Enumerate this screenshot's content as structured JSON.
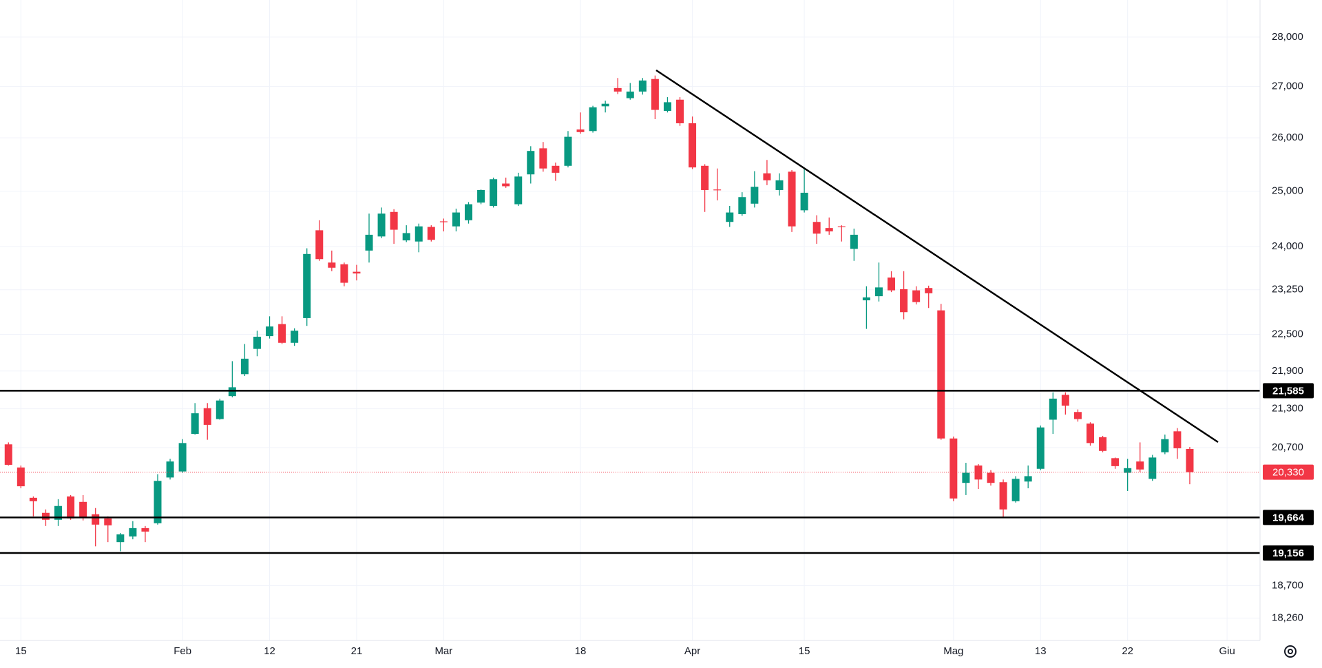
{
  "chart_data": {
    "type": "candlestick",
    "log_scale": true,
    "grid": true,
    "up_color": "#089981",
    "down_color": "#f23645",
    "x": [
      0,
      1,
      2,
      3,
      4,
      5,
      6,
      7,
      8,
      9,
      10,
      11,
      12,
      13,
      14,
      15,
      16,
      17,
      18,
      19,
      20,
      21,
      22,
      23,
      24,
      25,
      26,
      27,
      28,
      29,
      30,
      31,
      32,
      33,
      34,
      35,
      36,
      37,
      38,
      39,
      40,
      41,
      42,
      43,
      44,
      45,
      46,
      47,
      48,
      49,
      50,
      51,
      52,
      53,
      54,
      55,
      56,
      57,
      58,
      59,
      60,
      61,
      62,
      63,
      64,
      65,
      66,
      67,
      68,
      69,
      70,
      71,
      72,
      73,
      74,
      75,
      76,
      77,
      78,
      79,
      80,
      81,
      82,
      83,
      84,
      85,
      86,
      87,
      88,
      89,
      90,
      91,
      92,
      93,
      94,
      95
    ],
    "open": [
      20750,
      20400,
      19950,
      19730,
      19630,
      19970,
      19890,
      19710,
      19650,
      19310,
      19390,
      19510,
      19580,
      20250,
      20340,
      20910,
      21310,
      21140,
      21500,
      21850,
      22260,
      22470,
      22670,
      22360,
      22770,
      24290,
      23720,
      23690,
      23560,
      23930,
      24180,
      24620,
      24110,
      24090,
      24350,
      24450,
      24360,
      24470,
      24790,
      24730,
      25140,
      24760,
      25310,
      25800,
      25470,
      25470,
      26160,
      26130,
      26610,
      26970,
      26770,
      26900,
      27150,
      26520,
      26740,
      26280,
      25470,
      25030,
      24440,
      24580,
      24770,
      25330,
      25020,
      25360,
      24650,
      24440,
      24330,
      24360,
      23960,
      23070,
      23140,
      23460,
      23260,
      23240,
      23280,
      22900,
      20840,
      20170,
      20430,
      20320,
      20180,
      19900,
      20190,
      20380,
      21130,
      21520,
      21250,
      21070,
      20860,
      20540,
      20320,
      20490,
      20230,
      20630,
      20950,
      20680
    ],
    "high": [
      20780,
      20430,
      19970,
      19780,
      19930,
      19990,
      19990,
      19800,
      19680,
      19440,
      19610,
      19540,
      20300,
      20530,
      20830,
      21390,
      21390,
      21460,
      22060,
      22340,
      22560,
      22800,
      22800,
      22600,
      23970,
      24470,
      23930,
      23720,
      23680,
      24590,
      24700,
      24670,
      24380,
      24410,
      24380,
      24500,
      24680,
      24800,
      25030,
      25250,
      25250,
      25340,
      25840,
      25920,
      25530,
      26130,
      26490,
      26620,
      26720,
      27170,
      27070,
      27170,
      27220,
      26790,
      26790,
      26410,
      25500,
      25420,
      24730,
      24980,
      25370,
      25580,
      25330,
      25390,
      25410,
      24560,
      24520,
      24380,
      24320,
      23310,
      23720,
      23570,
      23570,
      23310,
      23320,
      23010,
      20870,
      20470,
      20450,
      20360,
      20220,
      20270,
      20430,
      21040,
      21560,
      21560,
      21290,
      21090,
      20880,
      20550,
      20530,
      20780,
      20590,
      20900,
      21000,
      20710
    ],
    "low": [
      20430,
      20090,
      19680,
      19540,
      19540,
      19630,
      19620,
      19250,
      19310,
      19180,
      19350,
      19310,
      19560,
      20220,
      20320,
      20900,
      20820,
      21130,
      21480,
      21820,
      22140,
      22430,
      22340,
      22310,
      22640,
      23750,
      23570,
      23310,
      23410,
      23720,
      24150,
      24050,
      24080,
      23900,
      24090,
      24270,
      24270,
      24410,
      24760,
      24700,
      25060,
      24730,
      25140,
      25360,
      25190,
      25440,
      26080,
      26100,
      26490,
      26850,
      26740,
      26840,
      26360,
      26490,
      26230,
      25410,
      24620,
      24830,
      24350,
      24550,
      24700,
      25110,
      24920,
      24260,
      24610,
      24050,
      24210,
      24090,
      23750,
      22590,
      23050,
      23210,
      22750,
      23000,
      22940,
      20820,
      19900,
      19990,
      20080,
      20130,
      19660,
      19880,
      20090,
      20360,
      20910,
      21210,
      21100,
      20730,
      20630,
      20380,
      20050,
      20330,
      20200,
      20600,
      20530,
      20150
    ],
    "close": [
      20440,
      20120,
      19900,
      19630,
      19830,
      19650,
      19660,
      19560,
      19550,
      19420,
      19510,
      19460,
      20200,
      20490,
      20770,
      21230,
      21050,
      21430,
      21640,
      22100,
      22460,
      22630,
      22360,
      22560,
      23870,
      23780,
      23630,
      23370,
      23530,
      24210,
      24590,
      24300,
      24240,
      24360,
      24120,
      24440,
      24610,
      24760,
      25020,
      25220,
      25090,
      25270,
      25750,
      25420,
      25340,
      26020,
      26110,
      26590,
      26660,
      26900,
      26900,
      27120,
      26540,
      26690,
      26280,
      25440,
      25020,
      25020,
      24610,
      24890,
      25080,
      25200,
      25200,
      24360,
      24970,
      24230,
      24270,
      24350,
      24210,
      23120,
      23290,
      23240,
      22870,
      23040,
      23190,
      20840,
      19940,
      20320,
      20220,
      20170,
      19780,
      20230,
      20270,
      21010,
      21460,
      21350,
      21140,
      20770,
      20650,
      20420,
      20390,
      20370,
      20550,
      20830,
      20690,
      20330
    ],
    "xlim": [
      -0.68,
      100.65
    ],
    "xticks": [
      {
        "value": 1,
        "label": "15"
      },
      {
        "value": 14,
        "label": "Feb"
      },
      {
        "value": 21,
        "label": "12"
      },
      {
        "value": 28,
        "label": "21"
      },
      {
        "value": 35,
        "label": "Mar"
      },
      {
        "value": 46,
        "label": "18"
      },
      {
        "value": 55,
        "label": "Apr"
      },
      {
        "value": 64,
        "label": "15"
      },
      {
        "value": 76,
        "label": "Mag"
      },
      {
        "value": 83,
        "label": "13"
      },
      {
        "value": 90,
        "label": "22"
      },
      {
        "value": 98,
        "label": "Giu"
      }
    ],
    "ylim": [
      17962,
      28775
    ],
    "yticks": [
      {
        "value": 28000,
        "label": "28,000"
      },
      {
        "value": 27000,
        "label": "27,000"
      },
      {
        "value": 26000,
        "label": "26,000"
      },
      {
        "value": 25000,
        "label": "25,000"
      },
      {
        "value": 24000,
        "label": "24,000"
      },
      {
        "value": 23250,
        "label": "23,250"
      },
      {
        "value": 22500,
        "label": "22,500"
      },
      {
        "value": 21900,
        "label": "21,900"
      },
      {
        "value": 21300,
        "label": "21,300"
      },
      {
        "value": 20700,
        "label": "20,700"
      },
      {
        "value": 18700,
        "label": "18,700"
      },
      {
        "value": 18260,
        "label": "18,260"
      }
    ],
    "levels": [
      {
        "value": 21585,
        "label": "21,585"
      },
      {
        "value": 19664,
        "label": "19,664"
      },
      {
        "value": 19156,
        "label": "19,156"
      }
    ],
    "last_price": {
      "value": 20330,
      "label": "20,330",
      "color": "#f23645"
    }
  }
}
